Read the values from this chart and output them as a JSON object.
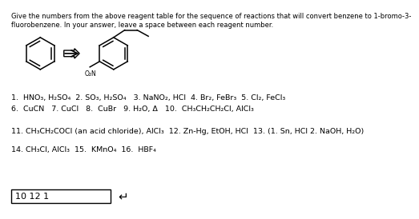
{
  "title_line1": "Give the numbers from the above reagent table for the sequence of reactions that will convert benzene to 1-bromo-3-",
  "title_line2": "fluorobenzene. In your answer, leave a space between each reagent number.",
  "reagent_line1": "1.  HNO₃, H₂SO₄  2. SO₃, H₂SO₄   3. NaNO₂, HCl  4. Br₂, FeBr₃  5. Cl₂, FeCl₃",
  "reagent_line2": "6.  CuCN   7. CuCl   8.  CuBr   9. H₂O, Δ   10.  CH₃CH₂CH₂Cl, AlCl₃",
  "reagent_line3": "11. CH₃CH₂COCl (an acid chloride), AlCl₃  12. Zn-Hg, EtOH, HCl  13. (1. Sn, HCl 2. NaOH, H₂O)",
  "reagent_line4": "14. CH₃Cl, AlCl₃  15.  KMnO₄  16.  HBF₄",
  "answer_text": "10 12 1",
  "background_color": "#ffffff",
  "text_color": "#000000",
  "font_size_title": 6.0,
  "font_size_reagents": 6.8,
  "font_size_answer": 8.0
}
